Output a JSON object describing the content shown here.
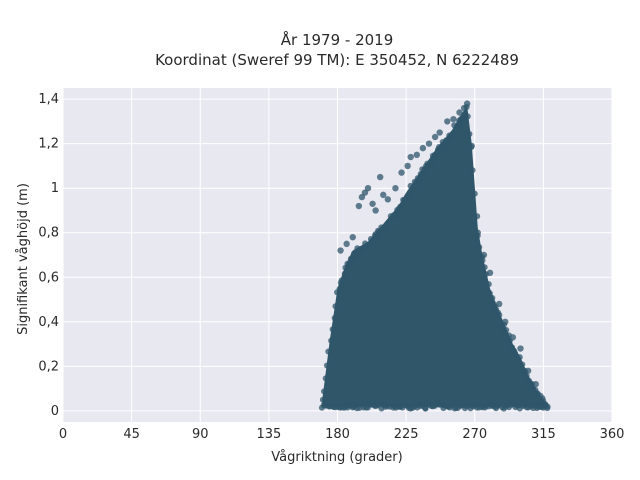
{
  "chart_data": {
    "type": "scatter",
    "title": "År 1979 - 2019",
    "subtitle": "Koordinat (Sweref 99 TM): E 350452, N 6222489",
    "xlabel": "Vågriktning (grader)",
    "ylabel": "Signifikant våghöjd (m)",
    "xlim": [
      0,
      360
    ],
    "ylim": [
      -0.05,
      1.45
    ],
    "x_ticks": [
      0,
      45,
      90,
      135,
      180,
      225,
      270,
      315,
      360
    ],
    "x_tick_labels": [
      "0",
      "45",
      "90",
      "135",
      "180",
      "225",
      "270",
      "315",
      "360"
    ],
    "y_ticks": [
      0,
      0.2,
      0.4,
      0.6,
      0.8,
      1.0,
      1.2,
      1.4
    ],
    "y_tick_labels": [
      "0",
      "0,2",
      "0,4",
      "0,6",
      "0,8",
      "1",
      "1,2",
      "1,4"
    ],
    "grid": true,
    "colors": {
      "points": "#2f5669",
      "background": "#e8e8f1",
      "grid": "#ffffff"
    },
    "envelope": {
      "direction": [
        170,
        175,
        180,
        185,
        190,
        195,
        200,
        205,
        210,
        215,
        220,
        225,
        230,
        235,
        240,
        245,
        250,
        255,
        260,
        265,
        268,
        272,
        275,
        280,
        285,
        290,
        295,
        300,
        305,
        310,
        315,
        318
      ],
      "max_height": [
        0.05,
        0.32,
        0.55,
        0.65,
        0.72,
        0.74,
        0.76,
        0.8,
        0.84,
        0.88,
        0.92,
        0.98,
        1.03,
        1.08,
        1.13,
        1.18,
        1.22,
        1.26,
        1.32,
        1.37,
        1.2,
        0.82,
        0.7,
        0.55,
        0.46,
        0.38,
        0.3,
        0.24,
        0.16,
        0.1,
        0.05,
        0.03
      ]
    },
    "outliers": [
      {
        "x": 182,
        "y": 0.72
      },
      {
        "x": 186,
        "y": 0.75
      },
      {
        "x": 190,
        "y": 0.78
      },
      {
        "x": 194,
        "y": 0.92
      },
      {
        "x": 196,
        "y": 0.96
      },
      {
        "x": 198,
        "y": 0.98
      },
      {
        "x": 200,
        "y": 1.0
      },
      {
        "x": 203,
        "y": 0.93
      },
      {
        "x": 205,
        "y": 0.9
      },
      {
        "x": 208,
        "y": 1.05
      },
      {
        "x": 210,
        "y": 0.97
      },
      {
        "x": 213,
        "y": 0.95
      },
      {
        "x": 218,
        "y": 1.0
      },
      {
        "x": 222,
        "y": 1.07
      },
      {
        "x": 226,
        "y": 1.1
      },
      {
        "x": 228,
        "y": 1.14
      },
      {
        "x": 232,
        "y": 1.15
      },
      {
        "x": 236,
        "y": 1.18
      },
      {
        "x": 240,
        "y": 1.2
      },
      {
        "x": 244,
        "y": 1.23
      },
      {
        "x": 247,
        "y": 1.25
      },
      {
        "x": 252,
        "y": 1.3
      },
      {
        "x": 256,
        "y": 1.31
      },
      {
        "x": 260,
        "y": 1.34
      },
      {
        "x": 263,
        "y": 1.36
      },
      {
        "x": 265,
        "y": 1.38
      },
      {
        "x": 268,
        "y": 1.19
      },
      {
        "x": 272,
        "y": 0.8
      },
      {
        "x": 276,
        "y": 0.7
      },
      {
        "x": 280,
        "y": 0.62
      },
      {
        "x": 286,
        "y": 0.48
      },
      {
        "x": 290,
        "y": 0.4
      },
      {
        "x": 295,
        "y": 0.33
      },
      {
        "x": 300,
        "y": 0.28
      },
      {
        "x": 305,
        "y": 0.18
      },
      {
        "x": 310,
        "y": 0.12
      },
      {
        "x": 316,
        "y": 0.03
      }
    ]
  }
}
